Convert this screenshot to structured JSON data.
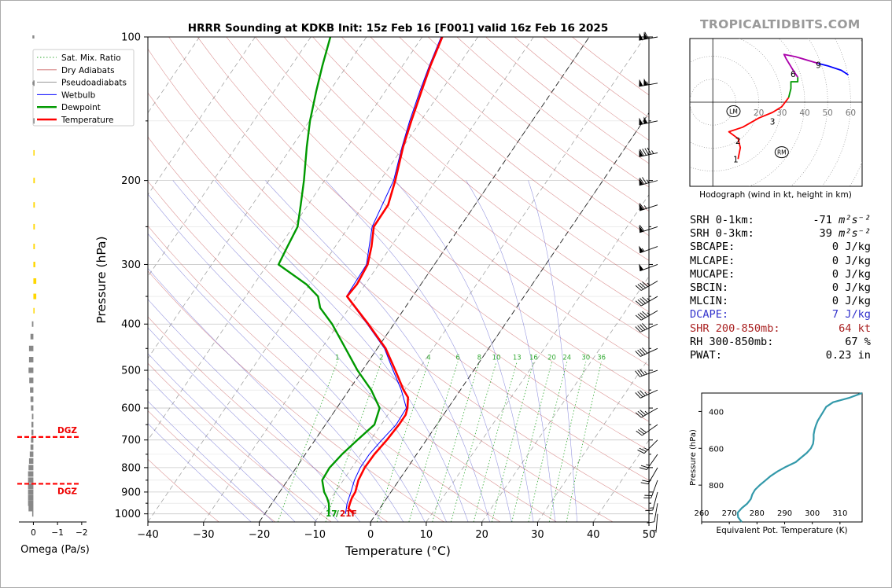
{
  "title": "HRRR Sounding at KDKB Init: 15z Feb 16 [F001] valid 16z Feb 16 2025",
  "watermark": "TROPICALTIDBITS.COM",
  "chart_data": [
    {
      "type": "line",
      "name": "skew-t",
      "xlabel": "Temperature (°C)",
      "ylabel": "Pressure (hPa)",
      "xlim": [
        -40,
        50
      ],
      "ylim": [
        1040,
        100
      ],
      "y_scale": "log",
      "x_ticks": [
        "−40",
        "−30",
        "−20",
        "−10",
        "0",
        "10",
        "20",
        "30",
        "40",
        "50"
      ],
      "y_ticks": [
        "100",
        "200",
        "300",
        "400",
        "500",
        "600",
        "700",
        "800",
        "900",
        "1000"
      ],
      "legend_position": "top-left",
      "legend": [
        "Sat. Mix. Ratio",
        "Dry Adiabats",
        "Pseudoadiabats",
        "Wetbulb",
        "Dewpoint",
        "Temperature"
      ],
      "mixing_ratio_labels": [
        "1",
        "2",
        "4",
        "6",
        "8",
        "10",
        "13",
        "16",
        "20",
        "24",
        "30",
        "36"
      ],
      "surface_label_dewpoint": "17",
      "surface_label_temperature": "21F",
      "dgz_label": "DGZ",
      "dgz_pressures": [
        690,
        865
      ],
      "colors": {
        "temperature": "#ff0000",
        "dewpoint": "#009900",
        "wetbulb": "#0000ff",
        "dry_adiabat": "#cc6666",
        "pseudoadiabat": "#777777",
        "mixing_ratio": "#33aa33"
      },
      "series": [
        {
          "name": "Temperature",
          "points": [
            [
              1000,
              -4
            ],
            [
              975,
              -5.6
            ],
            [
              950,
              -6.0
            ],
            [
              925,
              -6.3
            ],
            [
              900,
              -6.4
            ],
            [
              850,
              -7.3
            ],
            [
              800,
              -7.7
            ],
            [
              750,
              -7.6
            ],
            [
              700,
              -7.1
            ],
            [
              650,
              -6.8
            ],
            [
              620,
              -6.8
            ],
            [
              600,
              -7.3
            ],
            [
              570,
              -8.5
            ],
            [
              550,
              -10.2
            ],
            [
              500,
              -14.1
            ],
            [
              450,
              -18.5
            ],
            [
              400,
              -24.6
            ],
            [
              370,
              -28.8
            ],
            [
              350,
              -31.8
            ],
            [
              330,
              -31.5
            ],
            [
              300,
              -32.0
            ],
            [
              275,
              -33.5
            ],
            [
              250,
              -35.5
            ],
            [
              225,
              -35.6
            ],
            [
              200,
              -37.3
            ],
            [
              170,
              -40.0
            ],
            [
              150,
              -41.7
            ],
            [
              130,
              -43.5
            ],
            [
              115,
              -45.0
            ],
            [
              100,
              -46.4
            ]
          ]
        },
        {
          "name": "Wetbulb",
          "points": [
            [
              1000,
              -5.5
            ],
            [
              950,
              -6.5
            ],
            [
              900,
              -7.2
            ],
            [
              850,
              -8.0
            ],
            [
              800,
              -8.5
            ],
            [
              750,
              -8.5
            ],
            [
              700,
              -8.0
            ],
            [
              650,
              -7.3
            ],
            [
              600,
              -7.5
            ],
            [
              550,
              -10.6
            ],
            [
              500,
              -14.5
            ],
            [
              450,
              -18.7
            ],
            [
              400,
              -24.8
            ],
            [
              350,
              -31.9
            ],
            [
              300,
              -32.2
            ],
            [
              250,
              -35.8
            ],
            [
              200,
              -37.6
            ],
            [
              170,
              -40.2
            ],
            [
              150,
              -42.0
            ],
            [
              130,
              -43.8
            ],
            [
              115,
              -45.2
            ],
            [
              100,
              -46.6
            ]
          ]
        },
        {
          "name": "Dewpoint",
          "points": [
            [
              1000,
              -8.5
            ],
            [
              975,
              -9.1
            ],
            [
              950,
              -9.8
            ],
            [
              925,
              -10.8
            ],
            [
              900,
              -12.0
            ],
            [
              850,
              -13.8
            ],
            [
              800,
              -14.0
            ],
            [
              750,
              -13.4
            ],
            [
              700,
              -12.4
            ],
            [
              650,
              -11.2
            ],
            [
              600,
              -12.3
            ],
            [
              550,
              -16.0
            ],
            [
              500,
              -20.9
            ],
            [
              450,
              -25.7
            ],
            [
              400,
              -31.1
            ],
            [
              370,
              -35.2
            ],
            [
              350,
              -37.0
            ],
            [
              330,
              -40.6
            ],
            [
              300,
              -48.0
            ],
            [
              275,
              -48.6
            ],
            [
              250,
              -49.2
            ],
            [
              225,
              -51.3
            ],
            [
              200,
              -53.7
            ],
            [
              170,
              -57.3
            ],
            [
              150,
              -59.9
            ],
            [
              130,
              -62.4
            ],
            [
              115,
              -64.4
            ],
            [
              100,
              -66.5
            ]
          ]
        }
      ]
    },
    {
      "type": "bar",
      "name": "omega",
      "xlabel": "Omega (Pa/s)",
      "x_ticks": [
        "0",
        "−1",
        "−2"
      ],
      "xlim": [
        0.6,
        -2.2
      ],
      "colors": {
        "ascent": "#ffd700",
        "descent": "#888888"
      },
      "levels": [
        [
          1000,
          0.05
        ],
        [
          975,
          0.2
        ],
        [
          950,
          0.22
        ],
        [
          925,
          0.22
        ],
        [
          900,
          0.22
        ],
        [
          875,
          0.22
        ],
        [
          850,
          0.22
        ],
        [
          825,
          0.22
        ],
        [
          800,
          0.2
        ],
        [
          775,
          0.18
        ],
        [
          750,
          0.15
        ],
        [
          725,
          0.12
        ],
        [
          700,
          0.1
        ],
        [
          675,
          0.08
        ],
        [
          650,
          0.08
        ],
        [
          625,
          0.06
        ],
        [
          600,
          0.1
        ],
        [
          575,
          0.12
        ],
        [
          550,
          0.14
        ],
        [
          525,
          0.17
        ],
        [
          500,
          0.2
        ],
        [
          475,
          0.18
        ],
        [
          450,
          0.18
        ],
        [
          425,
          0.12
        ],
        [
          400,
          0.06
        ],
        [
          375,
          -0.02
        ],
        [
          350,
          -0.12
        ],
        [
          325,
          -0.12
        ],
        [
          300,
          -0.08
        ],
        [
          275,
          -0.06
        ],
        [
          250,
          -0.06
        ],
        [
          225,
          -0.06
        ],
        [
          200,
          -0.06
        ],
        [
          175,
          -0.05
        ],
        [
          150,
          0.0
        ],
        [
          125,
          0.0
        ]
      ]
    },
    {
      "type": "line",
      "name": "hodograph",
      "xlabel": "Hodograph (wind in kt, height in km)",
      "ring_labels": [
        "20",
        "30",
        "40",
        "50",
        "60"
      ],
      "height_labels": [
        "1",
        "2",
        "3",
        "6",
        "9"
      ],
      "markers": [
        "LM",
        "RM"
      ],
      "xlim": [
        -10,
        65
      ],
      "ylim": [
        -37,
        28
      ],
      "colors": [
        "#ff0000",
        "#009900",
        "#aa00aa",
        "#0000ff"
      ],
      "segments": [
        [
          [
            11,
            -25
          ],
          [
            12,
            -20
          ],
          [
            11,
            -16
          ],
          [
            7,
            -13
          ],
          [
            13,
            -11
          ],
          [
            20,
            -7
          ],
          [
            26,
            -4.5
          ],
          [
            30,
            -2
          ],
          [
            33,
            2
          ]
        ],
        [
          [
            33,
            2
          ],
          [
            34,
            6
          ],
          [
            34,
            9
          ],
          [
            37,
            9
          ],
          [
            37,
            11
          ]
        ],
        [
          [
            37,
            11
          ],
          [
            35,
            14
          ],
          [
            32,
            19
          ],
          [
            31,
            21
          ],
          [
            36,
            20
          ],
          [
            46,
            17
          ]
        ],
        [
          [
            46,
            17
          ],
          [
            50,
            16
          ],
          [
            56,
            14
          ],
          [
            59,
            12
          ]
        ]
      ],
      "height_points": [
        [
          11,
          -25
        ],
        [
          12,
          -17
        ],
        [
          27,
          -8.5
        ],
        [
          36,
          12.5
        ],
        [
          47,
          16.5
        ]
      ],
      "marker_points": [
        [
          9,
          -4
        ],
        [
          30,
          -22
        ]
      ]
    },
    {
      "type": "line",
      "name": "theta-e",
      "xlabel": "Equivalent Pot. Temperature (K)",
      "ylabel": "Pressure (hPa)",
      "xlim": [
        260,
        318
      ],
      "ylim": [
        1000,
        300
      ],
      "x_ticks": [
        "260",
        "270",
        "280",
        "290",
        "300",
        "310"
      ],
      "y_ticks": [
        "400",
        "600",
        "800"
      ],
      "color": "#3399aa",
      "points": [
        [
          1000,
          274.5
        ],
        [
          975,
          273.2
        ],
        [
          950,
          273.0
        ],
        [
          925,
          274.5
        ],
        [
          900,
          276.5
        ],
        [
          875,
          277.8
        ],
        [
          850,
          278.3
        ],
        [
          825,
          279.3
        ],
        [
          800,
          281.0
        ],
        [
          775,
          283.0
        ],
        [
          750,
          285.0
        ],
        [
          725,
          287.5
        ],
        [
          700,
          290.5
        ],
        [
          675,
          294.0
        ],
        [
          650,
          296.0
        ],
        [
          625,
          298.0
        ],
        [
          600,
          299.5
        ],
        [
          575,
          300.3
        ],
        [
          550,
          300.5
        ],
        [
          525,
          300.5
        ],
        [
          500,
          300.8
        ],
        [
          475,
          301.3
        ],
        [
          450,
          302.0
        ],
        [
          425,
          303.0
        ],
        [
          400,
          304.0
        ],
        [
          375,
          305.0
        ],
        [
          350,
          307.5
        ],
        [
          325,
          313.5
        ],
        [
          300,
          318.0
        ]
      ]
    }
  ],
  "indices": [
    {
      "label": "SRH 0-1km:",
      "value": "-71",
      "unit": "m²s⁻²",
      "color": "#000000"
    },
    {
      "label": "SRH 0-3km:",
      "value": "39",
      "unit": "m²s⁻²",
      "color": "#000000"
    },
    {
      "label": "SBCAPE:",
      "value": "0 J/kg",
      "unit": "",
      "color": "#000000"
    },
    {
      "label": "MLCAPE:",
      "value": "0 J/kg",
      "unit": "",
      "color": "#000000"
    },
    {
      "label": "MUCAPE:",
      "value": "0 J/kg",
      "unit": "",
      "color": "#000000"
    },
    {
      "label": "SBCIN:",
      "value": "0 J/kg",
      "unit": "",
      "color": "#000000"
    },
    {
      "label": "MLCIN:",
      "value": "0 J/kg",
      "unit": "",
      "color": "#000000"
    },
    {
      "label": "DCAPE:",
      "value": "7 J/kg",
      "unit": "",
      "color": "#3333cc"
    },
    {
      "label": "SHR 200-850mb:",
      "value": "64 kt",
      "unit": "",
      "color": "#aa2222"
    },
    {
      "label": "RH 300-850mb:",
      "value": "67 %",
      "unit": "",
      "color": "#000000"
    },
    {
      "label": "PWAT:",
      "value": "0.23 in",
      "unit": "",
      "color": "#000000"
    }
  ],
  "wind_barbs": [
    {
      "p": 100,
      "dir": 260,
      "spd": 110
    },
    {
      "p": 125,
      "dir": 260,
      "spd": 105
    },
    {
      "p": 150,
      "dir": 258,
      "spd": 100
    },
    {
      "p": 175,
      "dir": 258,
      "spd": 95
    },
    {
      "p": 200,
      "dir": 255,
      "spd": 75
    },
    {
      "p": 225,
      "dir": 252,
      "spd": 65
    },
    {
      "p": 250,
      "dir": 252,
      "spd": 60
    },
    {
      "p": 275,
      "dir": 250,
      "spd": 55
    },
    {
      "p": 300,
      "dir": 250,
      "spd": 50
    },
    {
      "p": 325,
      "dir": 240,
      "spd": 45
    },
    {
      "p": 350,
      "dir": 240,
      "spd": 45
    },
    {
      "p": 375,
      "dir": 240,
      "spd": 45
    },
    {
      "p": 400,
      "dir": 245,
      "spd": 40
    },
    {
      "p": 450,
      "dir": 245,
      "spd": 40
    },
    {
      "p": 500,
      "dir": 250,
      "spd": 35
    },
    {
      "p": 550,
      "dir": 245,
      "spd": 35
    },
    {
      "p": 600,
      "dir": 240,
      "spd": 35
    },
    {
      "p": 650,
      "dir": 235,
      "spd": 30
    },
    {
      "p": 700,
      "dir": 225,
      "spd": 25
    },
    {
      "p": 750,
      "dir": 215,
      "spd": 25
    },
    {
      "p": 800,
      "dir": 210,
      "spd": 20
    },
    {
      "p": 850,
      "dir": 200,
      "spd": 20
    },
    {
      "p": 900,
      "dir": 195,
      "spd": 15
    },
    {
      "p": 950,
      "dir": 190,
      "spd": 10
    },
    {
      "p": 1000,
      "dir": 185,
      "spd": 5
    }
  ]
}
